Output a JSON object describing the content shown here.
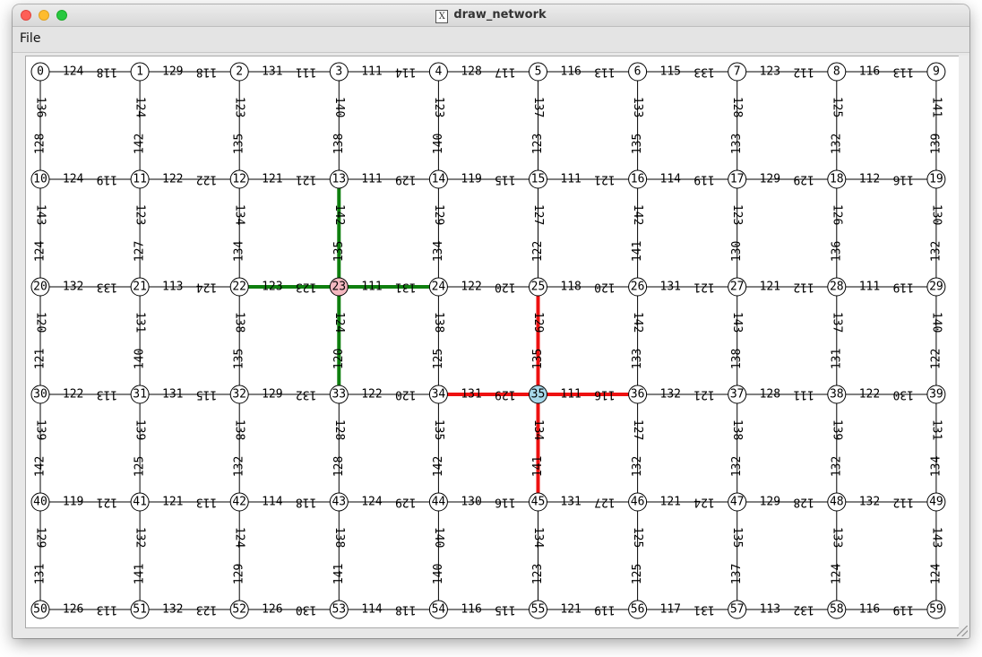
{
  "window": {
    "title": "draw_network"
  },
  "menu": {
    "file_label": "File"
  },
  "graph": {
    "cols": 10,
    "rows": 6,
    "highlight_nodes": {
      "23": "#f4b8c0",
      "35": "#a8d8ea"
    },
    "highlight_colors": {
      "green": "#0f7f0f",
      "red": "#ee1111"
    },
    "h_edges": [
      [
        [
          124,
          118
        ],
        [
          129,
          118
        ],
        [
          131,
          111
        ],
        [
          111,
          114
        ],
        [
          128,
          117
        ],
        [
          116,
          113
        ],
        [
          115,
          133
        ],
        [
          123,
          112
        ],
        [
          116,
          113
        ]
      ],
      [
        [
          124,
          119
        ],
        [
          122,
          122
        ],
        [
          121,
          121
        ],
        [
          111,
          129
        ],
        [
          119,
          115
        ],
        [
          111,
          121
        ],
        [
          114,
          119
        ],
        [
          129,
          129
        ],
        [
          112,
          116
        ]
      ],
      [
        [
          132,
          133
        ],
        [
          113,
          124
        ],
        [
          123,
          123
        ],
        [
          111,
          131
        ],
        [
          122,
          120
        ],
        [
          118,
          120
        ],
        [
          131,
          121
        ],
        [
          121,
          112
        ],
        [
          111,
          119
        ]
      ],
      [
        [
          122,
          113
        ],
        [
          131,
          115
        ],
        [
          129,
          132
        ],
        [
          122,
          120
        ],
        [
          131,
          129
        ],
        [
          111,
          116
        ],
        [
          132,
          121
        ],
        [
          128,
          111
        ],
        [
          122,
          130
        ]
      ],
      [
        [
          119,
          121
        ],
        [
          121,
          113
        ],
        [
          114,
          118
        ],
        [
          124,
          129
        ],
        [
          130,
          116
        ],
        [
          131,
          127
        ],
        [
          121,
          124
        ],
        [
          129,
          128
        ],
        [
          132,
          112
        ]
      ],
      [
        [
          126,
          113
        ],
        [
          132,
          123
        ],
        [
          126,
          130
        ],
        [
          114,
          118
        ],
        [
          116,
          115
        ],
        [
          121,
          119
        ],
        [
          117,
          131
        ],
        [
          113,
          132
        ],
        [
          116,
          119
        ]
      ]
    ],
    "v_edges": [
      [
        [
          136,
          128
        ],
        [
          124,
          142
        ],
        [
          123,
          135
        ],
        [
          140,
          138
        ],
        [
          123,
          140
        ],
        [
          137,
          123
        ],
        [
          133,
          135
        ],
        [
          128,
          133
        ],
        [
          125,
          132
        ],
        [
          141,
          139
        ]
      ],
      [
        [
          143,
          124
        ],
        [
          123,
          127
        ],
        [
          134,
          134
        ],
        [
          142,
          135
        ],
        [
          129,
          134
        ],
        [
          127,
          122
        ],
        [
          142,
          141
        ],
        [
          123,
          130
        ],
        [
          126,
          136
        ],
        [
          130,
          132
        ]
      ],
      [
        [
          120,
          121
        ],
        [
          131,
          140
        ],
        [
          138,
          135
        ],
        [
          124,
          120
        ],
        [
          138,
          125
        ],
        [
          129,
          135
        ],
        [
          142,
          133
        ],
        [
          143,
          138
        ],
        [
          137,
          131
        ],
        [
          140,
          122
        ]
      ],
      [
        [
          139,
          142
        ],
        [
          139,
          125
        ],
        [
          138,
          132
        ],
        [
          128,
          128
        ],
        [
          135,
          142
        ],
        [
          134,
          141
        ],
        [
          127,
          132
        ],
        [
          138,
          132
        ],
        [
          139,
          132
        ],
        [
          131,
          134
        ]
      ],
      [
        [
          129,
          131
        ],
        [
          132,
          141
        ],
        [
          124,
          129
        ],
        [
          138,
          141
        ],
        [
          140,
          140
        ],
        [
          134,
          123
        ],
        [
          125,
          125
        ],
        [
          135,
          137
        ],
        [
          133,
          124
        ],
        [
          143,
          124
        ]
      ]
    ],
    "highlight_edges": [
      {
        "orient": "h",
        "row": 2,
        "col": 2,
        "color": "green"
      },
      {
        "orient": "h",
        "row": 2,
        "col": 3,
        "color": "green"
      },
      {
        "orient": "v",
        "row": 1,
        "col": 3,
        "color": "green"
      },
      {
        "orient": "v",
        "row": 2,
        "col": 3,
        "color": "green"
      },
      {
        "orient": "h",
        "row": 3,
        "col": 4,
        "color": "red"
      },
      {
        "orient": "h",
        "row": 3,
        "col": 5,
        "color": "red"
      },
      {
        "orient": "v",
        "row": 2,
        "col": 5,
        "color": "red"
      },
      {
        "orient": "v",
        "row": 3,
        "col": 5,
        "color": "red"
      }
    ]
  }
}
